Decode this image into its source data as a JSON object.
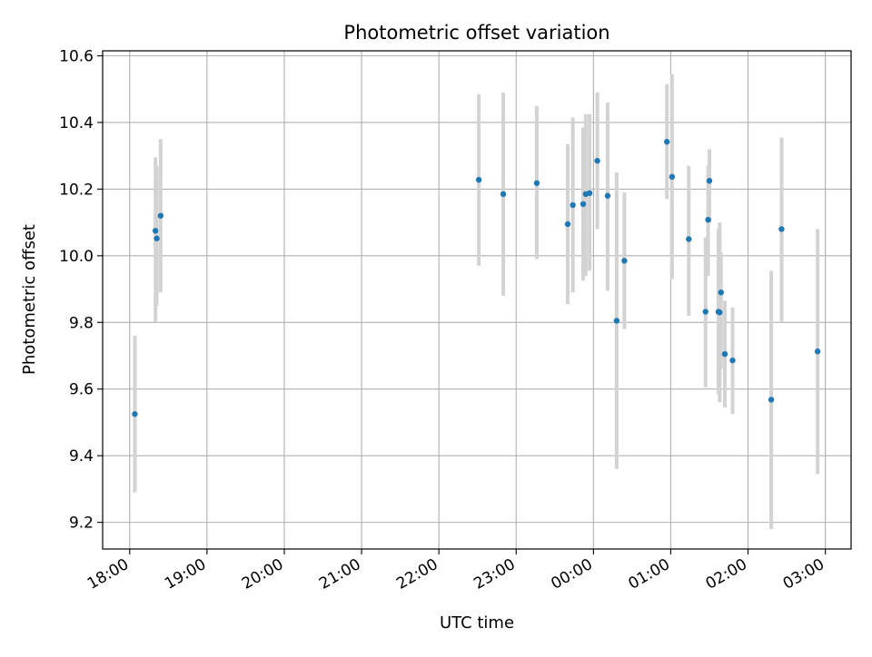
{
  "chart_data": {
    "type": "scatter",
    "title": "Photometric offset variation",
    "xlabel": "UTC time",
    "ylabel": "Photometric offset",
    "xlim": [
      "17:39",
      "03:20"
    ],
    "ylim": [
      9.12,
      10.615
    ],
    "x_ticks": [
      "18:00",
      "19:00",
      "20:00",
      "21:00",
      "22:00",
      "23:00",
      "00:00",
      "01:00",
      "02:00",
      "03:00"
    ],
    "y_ticks": [
      9.2,
      9.4,
      9.6,
      9.8,
      10.0,
      10.2,
      10.4,
      10.6
    ],
    "y_tick_labels": [
      "9.2",
      "9.4",
      "9.6",
      "9.8",
      "10.0",
      "10.2",
      "10.4",
      "10.6"
    ],
    "grid": true,
    "colors": {
      "point": "#1f77b4",
      "error_bar": "#d3d3d3",
      "grid": "#b0b0b0",
      "axes": "#000000"
    },
    "points": [
      {
        "x": "18:04",
        "y": 9.525,
        "ylo": 9.29,
        "yhi": 9.76
      },
      {
        "x": "18:20",
        "y": 10.075,
        "ylo": 9.8,
        "yhi": 10.295
      },
      {
        "x": "18:21",
        "y": 10.052,
        "ylo": 9.85,
        "yhi": 10.27
      },
      {
        "x": "18:24",
        "y": 10.12,
        "ylo": 9.89,
        "yhi": 10.35
      },
      {
        "x": "22:31",
        "y": 10.228,
        "ylo": 9.97,
        "yhi": 10.485
      },
      {
        "x": "22:50",
        "y": 10.185,
        "ylo": 9.88,
        "yhi": 10.49
      },
      {
        "x": "23:16",
        "y": 10.218,
        "ylo": 9.99,
        "yhi": 10.45
      },
      {
        "x": "23:40",
        "y": 10.095,
        "ylo": 9.855,
        "yhi": 10.335
      },
      {
        "x": "23:44",
        "y": 10.152,
        "ylo": 9.89,
        "yhi": 10.415
      },
      {
        "x": "23:52",
        "y": 10.155,
        "ylo": 9.925,
        "yhi": 10.385
      },
      {
        "x": "23:54",
        "y": 10.185,
        "ylo": 9.94,
        "yhi": 10.425
      },
      {
        "x": "23:57",
        "y": 10.188,
        "ylo": 9.955,
        "yhi": 10.425
      },
      {
        "x": "00:03",
        "y": 10.285,
        "ylo": 10.08,
        "yhi": 10.49
      },
      {
        "x": "00:11",
        "y": 10.18,
        "ylo": 9.895,
        "yhi": 10.46
      },
      {
        "x": "00:18",
        "y": 9.805,
        "ylo": 9.36,
        "yhi": 10.25
      },
      {
        "x": "00:24",
        "y": 9.985,
        "ylo": 9.78,
        "yhi": 10.19
      },
      {
        "x": "00:57",
        "y": 10.342,
        "ylo": 10.17,
        "yhi": 10.515
      },
      {
        "x": "01:01",
        "y": 10.237,
        "ylo": 9.93,
        "yhi": 10.545
      },
      {
        "x": "01:14",
        "y": 10.05,
        "ylo": 9.82,
        "yhi": 10.27
      },
      {
        "x": "01:27",
        "y": 9.832,
        "ylo": 9.605,
        "yhi": 10.055
      },
      {
        "x": "01:29",
        "y": 10.108,
        "ylo": 9.94,
        "yhi": 10.27
      },
      {
        "x": "01:30",
        "y": 10.225,
        "ylo": 10.1,
        "yhi": 10.32
      },
      {
        "x": "01:37",
        "y": 9.832,
        "ylo": 9.585,
        "yhi": 10.08
      },
      {
        "x": "01:38",
        "y": 9.83,
        "ylo": 9.56,
        "yhi": 10.1
      },
      {
        "x": "01:39",
        "y": 9.89,
        "ylo": 9.66,
        "yhi": 10.01
      },
      {
        "x": "01:42",
        "y": 9.705,
        "ylo": 9.545,
        "yhi": 9.865
      },
      {
        "x": "01:48",
        "y": 9.686,
        "ylo": 9.525,
        "yhi": 9.845
      },
      {
        "x": "02:18",
        "y": 9.568,
        "ylo": 9.18,
        "yhi": 9.955
      },
      {
        "x": "02:26",
        "y": 10.08,
        "ylo": 9.8,
        "yhi": 10.355
      },
      {
        "x": "02:54",
        "y": 9.713,
        "ylo": 9.345,
        "yhi": 10.08
      }
    ]
  }
}
